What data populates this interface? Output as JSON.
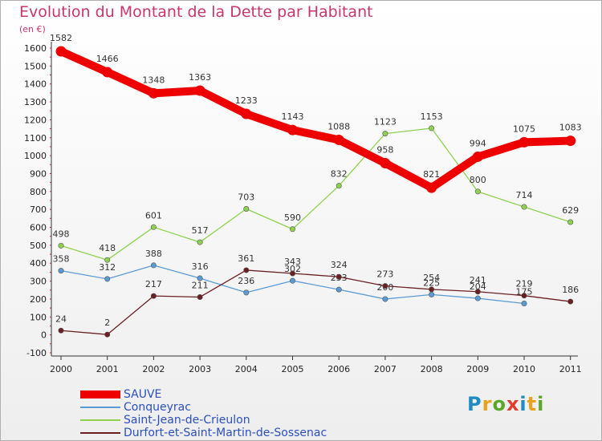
{
  "header": {
    "title": "Evolution du Montant de la Dette par Habitant",
    "unit": "(en €)"
  },
  "logo": {
    "text": "Proxiti",
    "letters": [
      "P",
      "r",
      "o",
      "x",
      "i",
      "t",
      "i"
    ],
    "colors": [
      "#1e8bc3",
      "#e9a21b",
      "#5aa829",
      "#e03c2e",
      "#1e8bc3",
      "#e9a21b",
      "#5aa829"
    ]
  },
  "chart_data": {
    "type": "line",
    "title": "Evolution du Montant de la Dette par Habitant",
    "ylabel": "(en €)",
    "xlabel": "",
    "x": [
      "2000",
      "2001",
      "2002",
      "2003",
      "2004",
      "2005",
      "2006",
      "2007",
      "2008",
      "2009",
      "2010",
      "2011"
    ],
    "ylim": [
      -100,
      1600
    ],
    "yticks": [
      -100,
      0,
      100,
      200,
      300,
      400,
      500,
      600,
      700,
      800,
      900,
      1000,
      1100,
      1200,
      1300,
      1400,
      1500,
      1600
    ],
    "grid": false,
    "legend_position": "bottom-left",
    "series": [
      {
        "name": "SAUVE",
        "color": "#ee0000",
        "values": [
          1582,
          1466,
          1348,
          1363,
          1233,
          1143,
          1088,
          958,
          821,
          994,
          1075,
          1083
        ],
        "labels": [
          "1582",
          "1466",
          "1348",
          "1363",
          "1233",
          "1143",
          "1088",
          "958",
          "821",
          "994",
          "1075",
          "1083"
        ]
      },
      {
        "name": "Conqueyrac",
        "color": "#5b9bd5",
        "values": [
          358,
          312,
          388,
          316,
          236,
          302,
          253,
          200,
          225,
          204,
          175,
          null
        ],
        "labels": [
          "358",
          "312",
          "388",
          "316",
          "236",
          "302",
          "253",
          "200",
          "225",
          "204",
          "175",
          ""
        ]
      },
      {
        "name": "Saint-Jean-de-Crieulon",
        "color": "#8fd14f",
        "values": [
          498,
          418,
          601,
          517,
          703,
          590,
          832,
          1123,
          1153,
          800,
          714,
          629
        ],
        "labels": [
          "498",
          "418",
          "601",
          "517",
          "703",
          "590",
          "832",
          "1123",
          "1153",
          "800",
          "714",
          "629"
        ]
      },
      {
        "name": "Durfort-et-Saint-Martin-de-Sossenac",
        "color": "#6b1f23",
        "values": [
          24,
          2,
          217,
          211,
          361,
          343,
          324,
          273,
          254,
          241,
          219,
          186
        ],
        "labels": [
          "24",
          "2",
          "217",
          "211",
          "361",
          "343",
          "324",
          "273",
          "254",
          "241",
          "219",
          "186"
        ]
      }
    ]
  }
}
